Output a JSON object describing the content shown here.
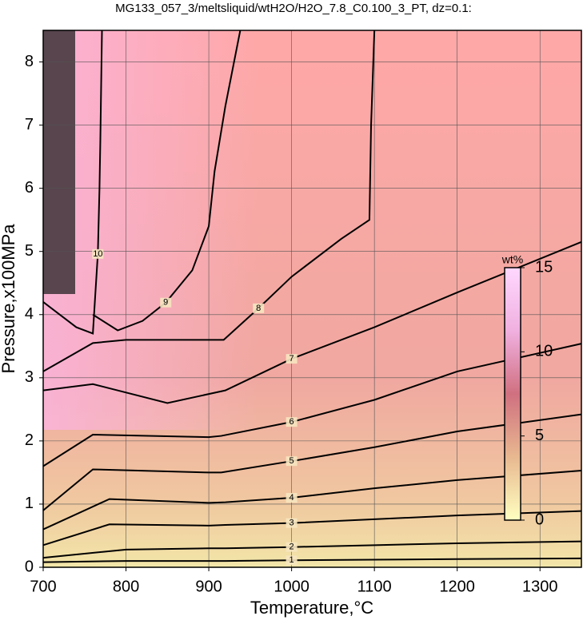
{
  "chart_data": {
    "type": "contour",
    "title": "MG133_057_3/meltsliquid/wtH2O/H2O_7.8_C0.100_3_PT, dz=0.1:",
    "x_label": "Temperature,°C",
    "y_label": "Pressure,x100MPa",
    "xlim": [
      700,
      1350
    ],
    "xticks": [
      700,
      800,
      900,
      1000,
      1100,
      1200,
      1300
    ],
    "ylim": [
      0,
      8.5
    ],
    "yticks": [
      0,
      1,
      2,
      3,
      4,
      5,
      6,
      7,
      8
    ],
    "grid": true,
    "series": [
      {
        "name": "1",
        "color": "#000000",
        "x": [
          700,
          800,
          900,
          920,
          1000,
          1100,
          1200,
          1350
        ],
        "values": [
          0.08,
          0.1,
          0.1,
          0.1,
          0.11,
          0.12,
          0.13,
          0.14
        ]
      },
      {
        "name": "2",
        "color": "#000000",
        "x": [
          700,
          800,
          900,
          920,
          1000,
          1100,
          1200,
          1350
        ],
        "values": [
          0.15,
          0.28,
          0.3,
          0.3,
          0.32,
          0.35,
          0.38,
          0.41
        ]
      },
      {
        "name": "3",
        "color": "#000000",
        "x": [
          700,
          780,
          900,
          920,
          1000,
          1100,
          1200,
          1350
        ],
        "values": [
          0.35,
          0.68,
          0.66,
          0.67,
          0.7,
          0.76,
          0.82,
          0.89
        ]
      },
      {
        "name": "4",
        "color": "#000000",
        "x": [
          700,
          780,
          900,
          920,
          1000,
          1100,
          1200,
          1350
        ],
        "values": [
          0.6,
          1.08,
          1.02,
          1.03,
          1.1,
          1.25,
          1.38,
          1.53
        ]
      },
      {
        "name": "5",
        "color": "#000000",
        "x": [
          700,
          760,
          900,
          915,
          1000,
          1100,
          1200,
          1350
        ],
        "values": [
          0.9,
          1.55,
          1.5,
          1.5,
          1.68,
          1.9,
          2.15,
          2.42
        ]
      },
      {
        "name": "6",
        "color": "#000000",
        "x": [
          700,
          760,
          900,
          915,
          1000,
          1100,
          1200,
          1350
        ],
        "values": [
          1.6,
          2.1,
          2.06,
          2.08,
          2.3,
          2.65,
          3.1,
          3.54
        ]
      },
      {
        "name": "7",
        "color": "#000000",
        "x": [
          700,
          760,
          850,
          920,
          1000,
          1100,
          1200,
          1350
        ],
        "values": [
          2.8,
          2.9,
          2.6,
          2.8,
          3.3,
          3.8,
          4.35,
          5.15
        ]
      },
      {
        "name": "8",
        "color": "#000000",
        "x": [
          700,
          760,
          800,
          918,
          960,
          1000,
          1060,
          1094,
          1096,
          1100
        ],
        "values": [
          3.1,
          3.55,
          3.6,
          3.6,
          4.1,
          4.6,
          5.2,
          5.5,
          7,
          8.5
        ]
      },
      {
        "name": "9",
        "color": "#000000",
        "x": [
          760,
          790,
          820,
          848,
          880,
          900,
          907,
          920,
          938
        ],
        "values": [
          4.0,
          3.75,
          3.9,
          4.19,
          4.7,
          5.4,
          6.27,
          7.3,
          8.5
        ]
      },
      {
        "name": "10",
        "color": "#000000",
        "x": [
          700,
          740,
          760,
          766,
          768,
          769,
          771
        ],
        "values": [
          4.2,
          3.8,
          3.7,
          4.96,
          6,
          6.74,
          8.5
        ]
      }
    ],
    "colorbar": {
      "label": "wt%",
      "lim": [
        0,
        15
      ],
      "ticks": [
        0,
        5,
        10,
        15
      ],
      "colors": [
        "#ffffc0",
        "#e8b890",
        "#d07080",
        "#f0b0e0",
        "#ffd8ff"
      ]
    }
  }
}
